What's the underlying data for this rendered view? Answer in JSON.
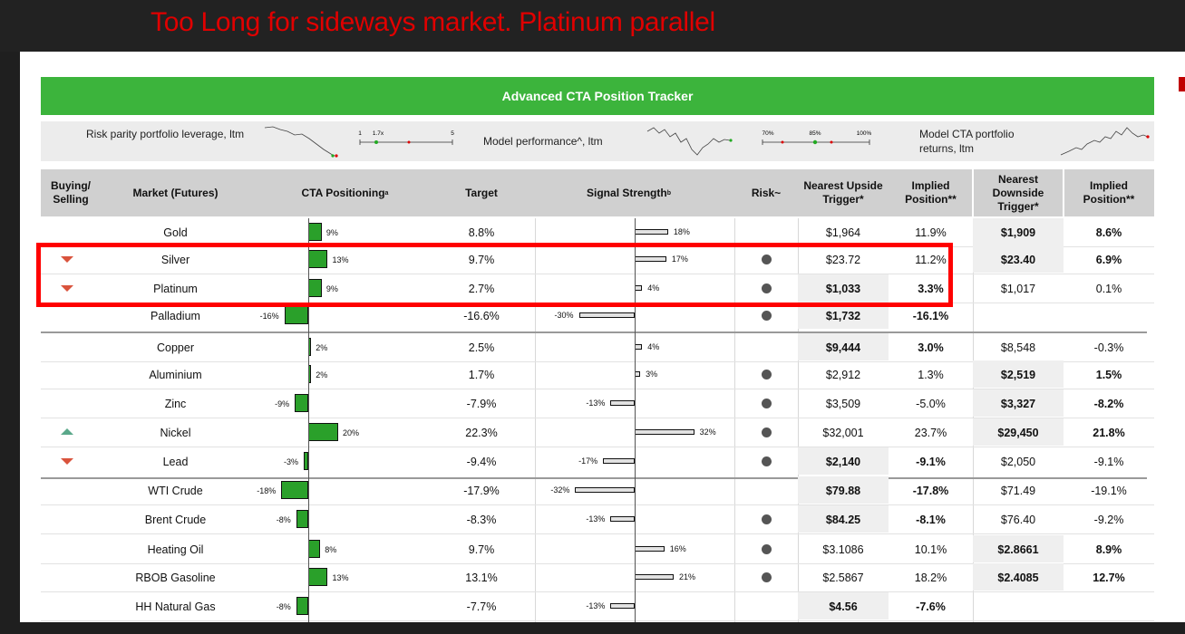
{
  "headline": "Too Long for sideways market. Platinum parallel",
  "tracker_title": "Advanced CTA Position Tracker",
  "info": {
    "leverage_label": "Risk parity portfolio leverage, ltm",
    "leverage_ticks": [
      "1",
      "1.7x",
      "5"
    ],
    "performance_label": "Model performance^, ltm",
    "performance_ticks": [
      "70%",
      "85%",
      "100%"
    ],
    "returns_label": "Model CTA portfolio returns, ltm"
  },
  "headers": {
    "buying_selling": "Buying/ Selling",
    "market": "Market (Futures)",
    "cta_positioning": "CTA Positioning",
    "cta_sup": "a",
    "target": "Target",
    "signal_strength": "Signal Strength",
    "signal_sup": "b",
    "risk": "Risk~",
    "upside_trigger": "Nearest Upside Trigger*",
    "implied_up": "Implied Position**",
    "downside_trigger": "Nearest Downside Trigger*",
    "implied_down": "Implied Position**"
  },
  "rows": [
    {
      "action": "",
      "market": "Gold",
      "pos": 9,
      "pos_label": "9%",
      "target": "8.8%",
      "signal": 18,
      "signal_label": "18%",
      "risk": false,
      "up": "$1,964",
      "up_impl": "11.9%",
      "up_bold": false,
      "down": "$1,909",
      "down_impl": "8.6%",
      "down_bold": true
    },
    {
      "action": "sell",
      "market": "Silver",
      "pos": 13,
      "pos_label": "13%",
      "target": "9.7%",
      "signal": 17,
      "signal_label": "17%",
      "risk": true,
      "up": "$23.72",
      "up_impl": "11.2%",
      "up_bold": false,
      "down": "$23.40",
      "down_impl": "6.9%",
      "down_bold": true
    },
    {
      "action": "sell",
      "market": "Platinum",
      "pos": 9,
      "pos_label": "9%",
      "target": "2.7%",
      "signal": 4,
      "signal_label": "4%",
      "risk": true,
      "up": "$1,033",
      "up_impl": "3.3%",
      "up_bold": true,
      "down": "$1,017",
      "down_impl": "0.1%",
      "down_bold": false
    },
    {
      "action": "",
      "market": "Palladium",
      "pos": -16,
      "pos_label": "-16%",
      "target": "-16.6%",
      "signal": -30,
      "signal_label": "-30%",
      "risk": true,
      "up": "$1,732",
      "up_impl": "-16.1%",
      "up_bold": true,
      "down": "",
      "down_impl": "",
      "down_bold": false
    },
    {
      "action": "",
      "market": "Copper",
      "pos": 2,
      "pos_label": "2%",
      "target": "2.5%",
      "signal": 4,
      "signal_label": "4%",
      "risk": false,
      "up": "$9,444",
      "up_impl": "3.0%",
      "up_bold": true,
      "down": "$8,548",
      "down_impl": "-0.3%",
      "down_bold": false
    },
    {
      "action": "",
      "market": "Aluminium",
      "pos": 2,
      "pos_label": "2%",
      "target": "1.7%",
      "signal": 3,
      "signal_label": "3%",
      "risk": true,
      "up": "$2,912",
      "up_impl": "1.3%",
      "up_bold": false,
      "down": "$2,519",
      "down_impl": "1.5%",
      "down_bold": true
    },
    {
      "action": "",
      "market": "Zinc",
      "pos": -9,
      "pos_label": "-9%",
      "target": "-7.9%",
      "signal": -13,
      "signal_label": "-13%",
      "risk": true,
      "up": "$3,509",
      "up_impl": "-5.0%",
      "up_bold": false,
      "down": "$3,327",
      "down_impl": "-8.2%",
      "down_bold": true
    },
    {
      "action": "buy",
      "market": "Nickel",
      "pos": 20,
      "pos_label": "20%",
      "target": "22.3%",
      "signal": 32,
      "signal_label": "32%",
      "risk": true,
      "up": "$32,001",
      "up_impl": "23.7%",
      "up_bold": false,
      "down": "$29,450",
      "down_impl": "21.8%",
      "down_bold": true
    },
    {
      "action": "sell",
      "market": "Lead",
      "pos": -3,
      "pos_label": "-3%",
      "target": "-9.4%",
      "signal": -17,
      "signal_label": "-17%",
      "risk": true,
      "up": "$2,140",
      "up_impl": "-9.1%",
      "up_bold": true,
      "down": "$2,050",
      "down_impl": "-9.1%",
      "down_bold": false
    },
    {
      "action": "",
      "market": "WTI Crude",
      "pos": -18,
      "pos_label": "-18%",
      "target": "-17.9%",
      "signal": -32,
      "signal_label": "-32%",
      "risk": false,
      "up": "$79.88",
      "up_impl": "-17.8%",
      "up_bold": true,
      "down": "$71.49",
      "down_impl": "-19.1%",
      "down_bold": false
    },
    {
      "action": "",
      "market": "Brent Crude",
      "pos": -8,
      "pos_label": "-8%",
      "target": "-8.3%",
      "signal": -13,
      "signal_label": "-13%",
      "risk": true,
      "up": "$84.25",
      "up_impl": "-8.1%",
      "up_bold": true,
      "down": "$76.40",
      "down_impl": "-9.2%",
      "down_bold": false
    },
    {
      "action": "",
      "market": "Heating Oil",
      "pos": 8,
      "pos_label": "8%",
      "target": "9.7%",
      "signal": 16,
      "signal_label": "16%",
      "risk": true,
      "up": "$3.1086",
      "up_impl": "10.1%",
      "up_bold": false,
      "down": "$2.8661",
      "down_impl": "8.9%",
      "down_bold": true
    },
    {
      "action": "",
      "market": "RBOB Gasoline",
      "pos": 13,
      "pos_label": "13%",
      "target": "13.1%",
      "signal": 21,
      "signal_label": "21%",
      "risk": true,
      "up": "$2.5867",
      "up_impl": "18.2%",
      "up_bold": false,
      "down": "$2.4085",
      "down_impl": "12.7%",
      "down_bold": true
    },
    {
      "action": "",
      "market": "HH Natural Gas",
      "pos": -8,
      "pos_label": "-8%",
      "target": "-7.7%",
      "signal": -13,
      "signal_label": "-13%",
      "risk": false,
      "up": "$4.56",
      "up_impl": "-7.6%",
      "up_bold": true,
      "down": "",
      "down_impl": "",
      "down_bold": false
    }
  ],
  "colors": {
    "headline": "#e00000",
    "banner": "#3cb43c",
    "position_bar": "#2aa02a",
    "sell_arrow": "#d9533c",
    "buy_arrow": "#5aa88a",
    "highlight_box": "#ff0000",
    "risk_dot": "#555555"
  }
}
